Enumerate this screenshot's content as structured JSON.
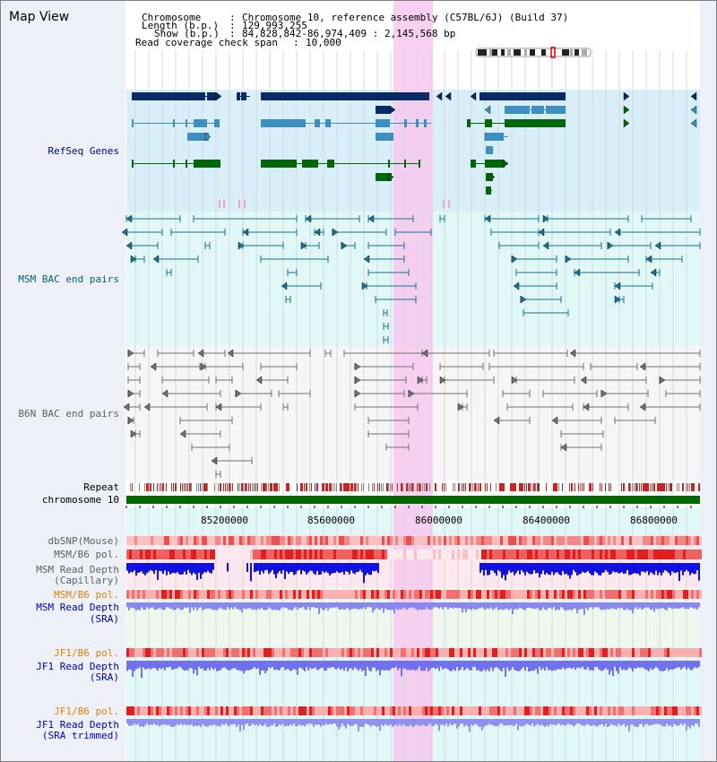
{
  "map_title": "Map View",
  "info": {
    "chromosome_key": "Chromosome",
    "chromosome_value": "Chromosome 10, reference assembly (C57BL/6J) (Build 37)",
    "length_key": "Length (b.p.)",
    "length_value": "129,993,255",
    "show_key": "Show (b.p.)",
    "show_value": "84,828,842-86,974,409 : 2,145,568 bp",
    "coverage_key": "Read coverage check span",
    "coverage_value": "10,000"
  },
  "tracks": {
    "refseq": "RefSeq Genes",
    "msm_bac": "MSM BAC end pairs",
    "b6n_bac": "B6N BAC end pairs",
    "repeat": "Repeat",
    "chromosome": "chromosome 10",
    "dbsnp": "dbSNP(Mouse)",
    "msm_b6_pol": "MSM/B6 pol.",
    "msm_depth_cap_1": "MSM Read Depth",
    "msm_depth_cap_2": "(Capillary)",
    "msm_b6_pol2": "MSM/B6 pol.",
    "msm_depth_sra_1": "MSM Read Depth",
    "msm_depth_sra_2": "(SRA)",
    "jf1_b6_pol": "JF1/B6 pol.",
    "jf1_depth_sra_1": "JF1 Read Depth",
    "jf1_depth_sra_2": "(SRA)",
    "jf1_b6_pol2": "JF1/B6 pol.",
    "jf1_depth_trim_1": "JF1 Read Depth",
    "jf1_depth_trim_2": "(SRA trimmed)"
  },
  "axis": {
    "ticks": [
      "85200000",
      "85600000",
      "86000000",
      "86400000",
      "86800000"
    ]
  },
  "colors": {
    "refseq_label": "#00008b",
    "msm_label": "#006080",
    "b6n_label": "#606060",
    "orange_label": "#e08000",
    "blue_label": "#0000b0",
    "highlight": "#f8c8f0"
  }
}
